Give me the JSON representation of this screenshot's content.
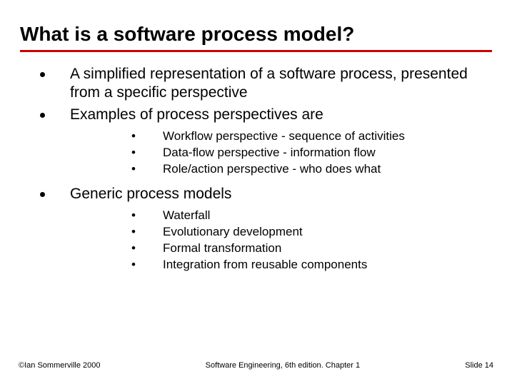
{
  "title": "What is a software process model?",
  "bullets": [
    {
      "text": "A simplified representation of a software process, presented from a specific perspective"
    },
    {
      "text": "Examples of process perspectives are",
      "sub": [
        "Workflow perspective - sequence of activities",
        "Data-flow perspective - information flow",
        "Role/action perspective - who does what"
      ]
    },
    {
      "text": "Generic process models",
      "sub": [
        "Waterfall",
        "Evolutionary development",
        "Formal transformation",
        "Integration from reusable components"
      ]
    }
  ],
  "footer": {
    "left": "©Ian Sommerville 2000",
    "center": "Software Engineering, 6th edition. Chapter 1",
    "right": "Slide 14"
  },
  "styling": {
    "slide_width": 717,
    "slide_height": 538,
    "background_color": "#ffffff",
    "text_color": "#000000",
    "title_fontsize": 28,
    "title_fontweight": "bold",
    "title_underline_color": "#cc0000",
    "title_underline_thickness": 3,
    "level1_fontsize": 21,
    "level1_bullet": "filled-circle",
    "level1_bullet_size": 7,
    "level2_fontsize": 17,
    "level2_bullet": "dot",
    "footer_fontsize": 11,
    "font_family": "Arial"
  }
}
